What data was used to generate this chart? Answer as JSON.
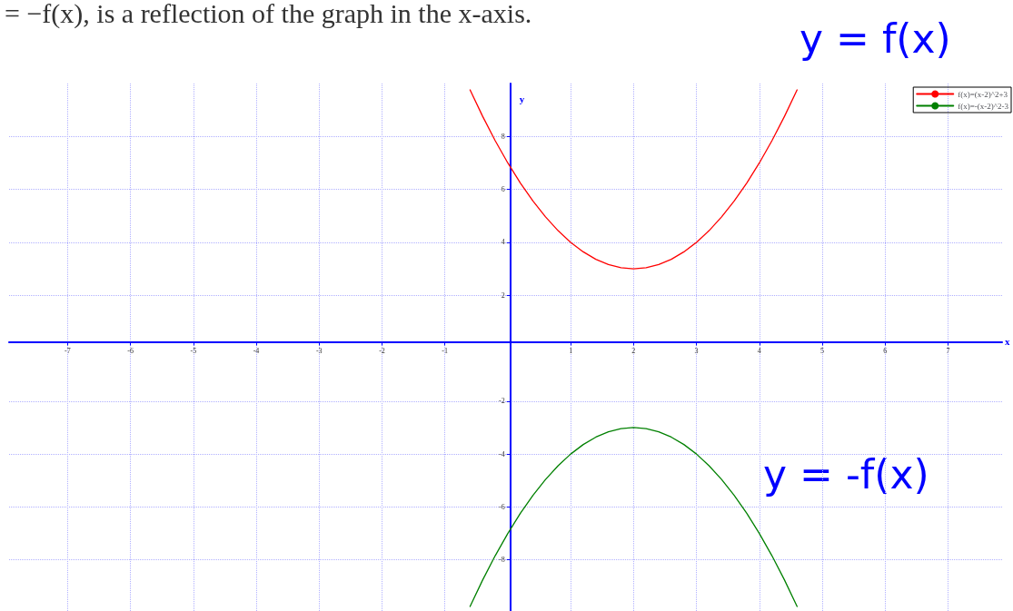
{
  "chart_data": {
    "type": "line",
    "title": "= −f(x), is a reflection of the graph in the x-axis.",
    "xlabel": "x",
    "ylabel": "y",
    "annotations": [
      "y = f(x)",
      "y = -f(x)"
    ],
    "x": [
      -0.6,
      -0.4,
      -0.2,
      0,
      0.2,
      0.4,
      0.6,
      0.8,
      1,
      1.2,
      1.4,
      1.6,
      1.8,
      2,
      2.2,
      2.4,
      2.6,
      2.8,
      3,
      3.2,
      3.4,
      3.6,
      3.8,
      4,
      4.2,
      4.4,
      4.6
    ],
    "series": [
      {
        "name": "f(x)=(x-2)^2+3",
        "color": "#ff0000",
        "values": [
          9.76,
          8.76,
          7.84,
          7,
          6.24,
          5.56,
          4.96,
          4.44,
          4,
          3.64,
          3.36,
          3.16,
          3.04,
          3,
          3.04,
          3.16,
          3.36,
          3.64,
          4,
          4.44,
          4.96,
          5.56,
          6.24,
          7,
          7.84,
          8.76,
          9.76
        ]
      },
      {
        "name": "f(x)=-(x-2)^2-3",
        "color": "#008000",
        "values": [
          -9.76,
          -8.76,
          -7.84,
          -7,
          -6.24,
          -5.56,
          -4.96,
          -4.44,
          -4,
          -3.64,
          -3.36,
          -3.16,
          -3.04,
          -3,
          -3.04,
          -3.16,
          -3.36,
          -3.64,
          -4,
          -4.44,
          -4.96,
          -5.56,
          -6.24,
          -7,
          -7.84,
          -8.76,
          -9.76
        ]
      }
    ],
    "xlim": [
      -7.93,
      7.86
    ],
    "ylim": [
      -9.93,
      10
    ],
    "xticks": [
      -7,
      -6,
      -5,
      -4,
      -3,
      -2,
      -1,
      1,
      2,
      3,
      4,
      5,
      6,
      7
    ],
    "yticks": [
      -8,
      -6,
      -4,
      -2,
      2,
      4,
      6,
      8
    ],
    "grid": true,
    "legend": "top right",
    "marker": "none",
    "line_style": "solid"
  }
}
